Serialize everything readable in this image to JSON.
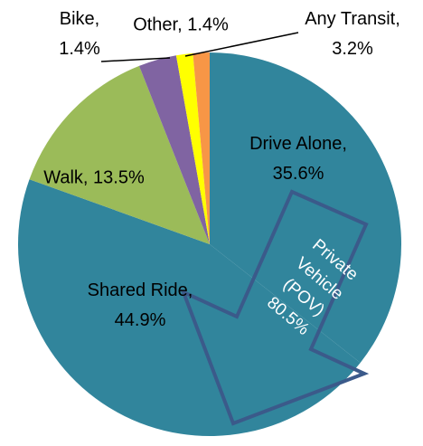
{
  "chart_data": {
    "type": "pie",
    "values": [
      35.6,
      44.9,
      13.5,
      3.2,
      1.4,
      1.4
    ],
    "value_labels": [
      "Drive Alone, 35.6%",
      "Shared Ride, 44.9%",
      "Walk, 13.5%",
      "Any Transit, 3.2%",
      "Bike, 1.4%",
      "Other, 1.4%"
    ],
    "colors": [
      "#31859c",
      "#31859c",
      "#9bbb59",
      "#8064a2",
      "#ffff00",
      "#f79646"
    ],
    "annotation": [
      "Private",
      "Vehicle",
      "(POV)",
      "80.5%"
    ]
  }
}
